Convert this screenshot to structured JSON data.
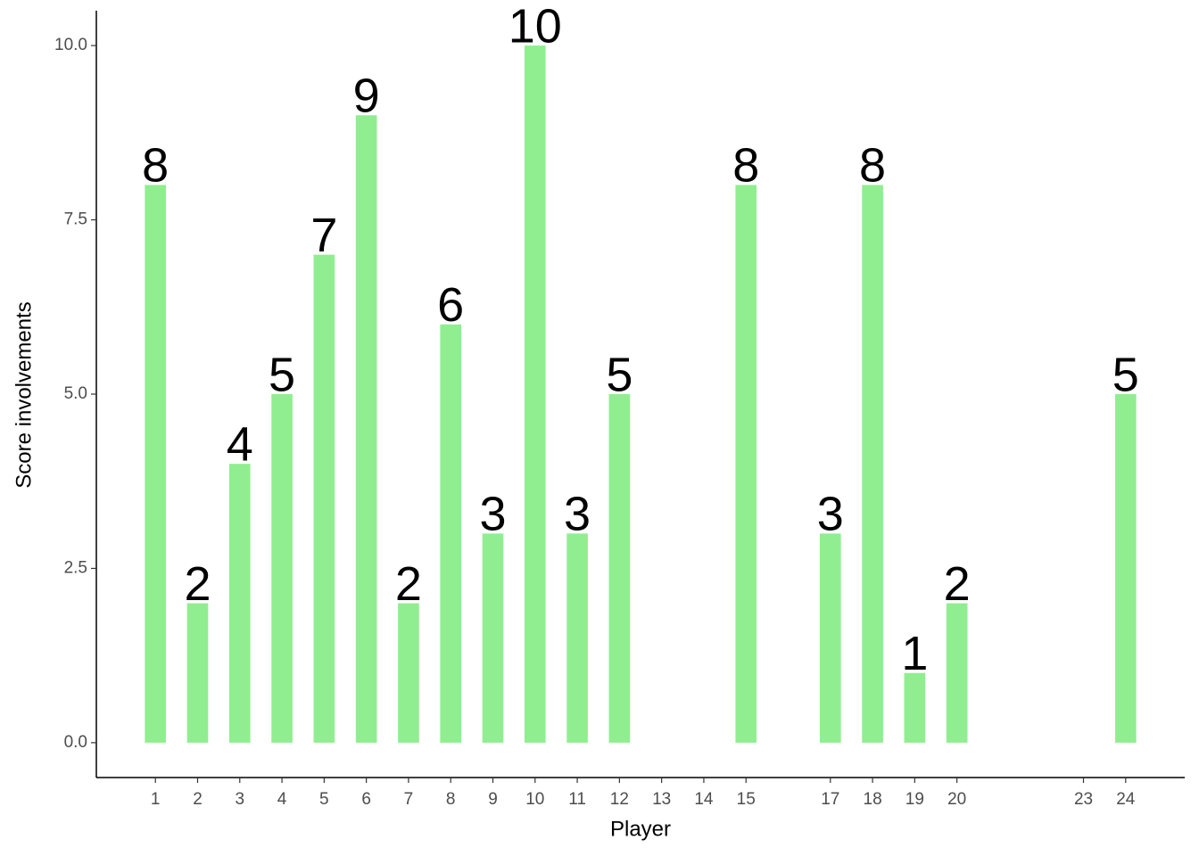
{
  "chart_data": {
    "type": "bar",
    "x_label": "Player",
    "y_label": "Score involvements",
    "x": [
      1,
      2,
      3,
      4,
      5,
      6,
      7,
      8,
      9,
      10,
      11,
      12,
      15,
      17,
      18,
      19,
      20,
      24
    ],
    "values": [
      8,
      2,
      4,
      5,
      7,
      9,
      2,
      6,
      3,
      10,
      3,
      5,
      8,
      3,
      8,
      1,
      2,
      5
    ],
    "color": "#90ee90",
    "xlim": [
      -0.4,
      25.4
    ],
    "xticks": [
      1,
      2,
      3,
      4,
      5,
      6,
      7,
      8,
      9,
      10,
      11,
      12,
      13,
      14,
      15,
      17,
      18,
      19,
      20,
      23,
      24
    ],
    "ylim": [
      -0.5,
      10.5
    ],
    "yticks": [
      {
        "value": 0,
        "label": "0.0"
      },
      {
        "value": 2.5,
        "label": "2.5"
      },
      {
        "value": 5,
        "label": "5.0"
      },
      {
        "value": 7.5,
        "label": "7.5"
      },
      {
        "value": 10,
        "label": "10.0"
      }
    ],
    "grid": false
  }
}
